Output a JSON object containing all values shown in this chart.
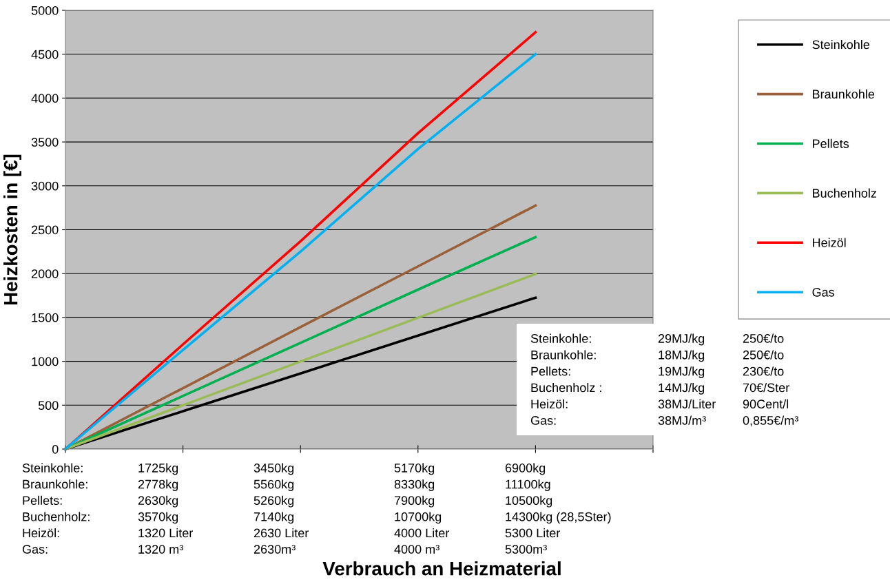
{
  "chart_data": {
    "type": "line",
    "ylabel": "Heizkosten in [€]",
    "categories": [
      null,
      null,
      null,
      null,
      null,
      null
    ],
    "series": [
      {
        "name": "Steinkohle",
        "color": "#000000",
        "values": [
          0,
          431,
          862,
          1293,
          1725,
          null
        ]
      },
      {
        "name": "Braunkohle",
        "color": "#99603a",
        "values": [
          0,
          694,
          1390,
          2082,
          2775,
          null
        ]
      },
      {
        "name": "Pellets",
        "color": "#00b050",
        "values": [
          0,
          605,
          1210,
          1817,
          2415,
          null
        ]
      },
      {
        "name": "Buchenholz",
        "color": "#9bbb59",
        "values": [
          0,
          499,
          998,
          1496,
          1995,
          null
        ]
      },
      {
        "name": "Heizöl",
        "color": "#ff0000",
        "values": [
          0,
          1193,
          2367,
          3600,
          4750,
          null
        ]
      },
      {
        "name": "Gas",
        "color": "#00b0f0",
        "values": [
          0,
          1129,
          2249,
          3420,
          4500,
          null
        ]
      }
    ],
    "ylim": [
      0,
      5000
    ],
    "yticks": [
      0,
      500,
      1000,
      1500,
      2000,
      2500,
      3000,
      3500,
      4000,
      4500,
      5000
    ],
    "grid": "y",
    "legend": "right",
    "tick_labels": "y",
    "marker": "none",
    "line_style": "solid",
    "annotations": [
      "Steinkohle:",
      "1725kg",
      "3450kg",
      "5170kg",
      "6900kg",
      "Braunkohle:",
      "2778kg",
      "5560kg",
      "8330kg",
      "11100kg",
      "Pellets:",
      "2630kg",
      "5260kg",
      "7900kg",
      "10500kg",
      "Buchenholz:",
      "3570kg",
      "7140kg",
      "10700kg",
      "14300kg (28,5Ster)",
      "Heizöl:",
      "1320 Liter",
      "2630 Liter",
      "4000 Liter",
      "5300 Liter",
      "Gas:",
      "1320 m³",
      "2630m³",
      "4000 m³",
      "5300m³",
      "Steinkohle:",
      "29MJ/kg",
      "250€/to",
      "Braunkohle:",
      "18MJ/kg",
      "250€/to",
      "Pellets:",
      "19MJ/kg",
      "230€/to",
      "Buchenholz :",
      "14MJ/kg",
      "70€/Ster",
      "Heizöl:",
      "38MJ/Liter",
      "90Cent/l",
      "Gas:",
      "38MJ/m³",
      "0,855€/m³",
      "Verbrauch an Heizmaterial"
    ]
  }
}
